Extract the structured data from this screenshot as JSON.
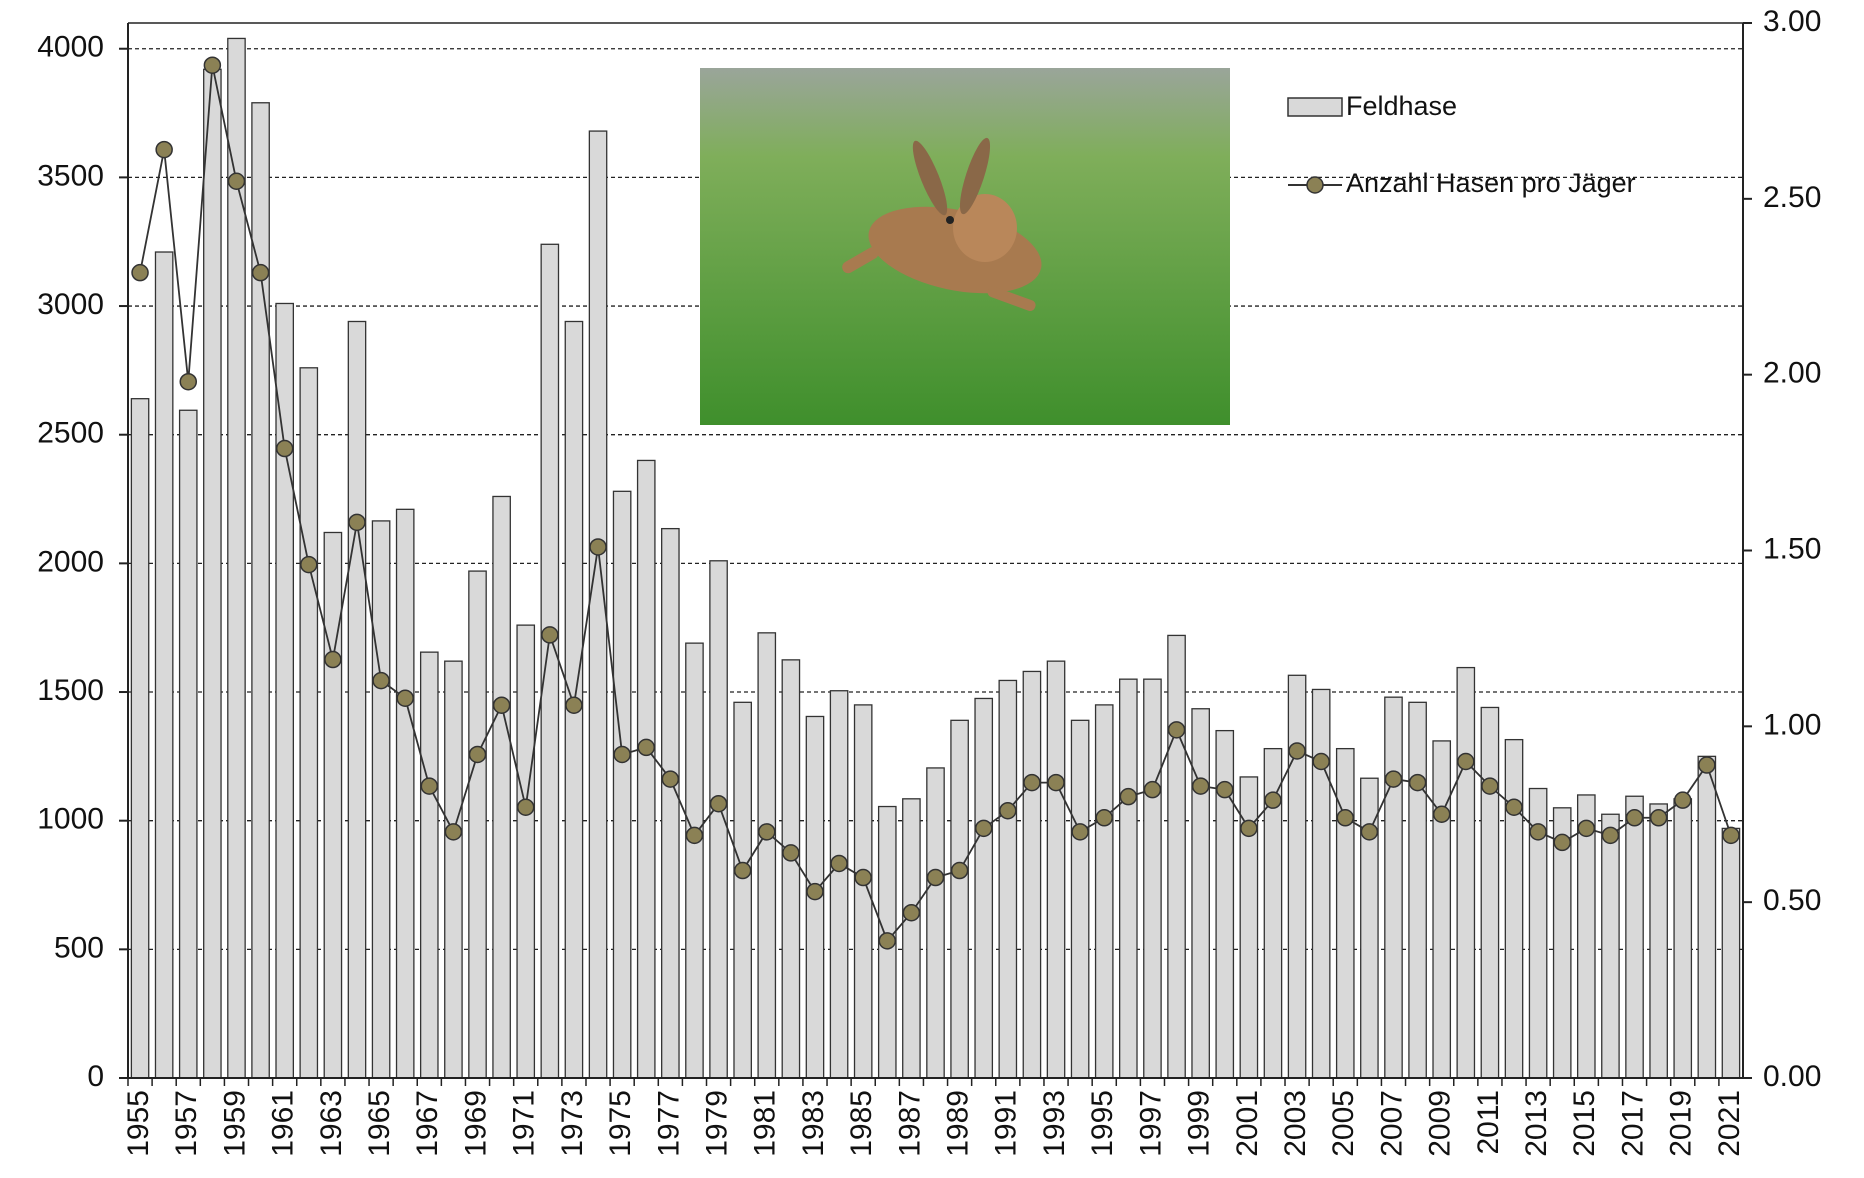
{
  "chart_data": {
    "type": "bar",
    "categories": [
      "1955",
      null,
      "1957",
      null,
      "1959",
      null,
      "1961",
      null,
      "1963",
      null,
      "1965",
      null,
      "1967",
      null,
      "1969",
      null,
      "1971",
      null,
      "1973",
      null,
      "1975",
      null,
      "1977",
      null,
      "1979",
      null,
      "1981",
      null,
      "1983",
      null,
      "1985",
      null,
      "1987",
      null,
      "1989",
      null,
      "1991",
      null,
      "1993",
      null,
      "1995",
      null,
      "1997",
      null,
      "1999",
      null,
      "2001",
      null,
      "2003",
      null,
      "2005",
      null,
      "2007",
      null,
      "2009",
      null,
      "2011",
      null,
      "2013",
      null,
      "2015",
      null,
      "2017",
      null,
      "2019",
      null,
      "2021"
    ],
    "series": [
      {
        "name": "Feldhase",
        "color": "#d9d9d9",
        "values": [
          2640,
          3210,
          2595,
          3920,
          4040,
          3790,
          3010,
          2760,
          2120,
          2940,
          2165,
          2210,
          1655,
          1620,
          1970,
          2260,
          1760,
          3240,
          2940,
          3680,
          2280,
          2400,
          2135,
          1690,
          2010,
          1460,
          1730,
          1625,
          1405,
          1505,
          1450,
          1055,
          1085,
          1205,
          1390,
          1475,
          1545,
          1580,
          1620,
          1390,
          1450,
          1550,
          1550,
          1720,
          1435,
          1350,
          1170,
          1280,
          1565,
          1510,
          1280,
          1165,
          1480,
          1460,
          1310,
          1595,
          1440,
          1315,
          1125,
          1050,
          1100,
          1025,
          1095,
          1065,
          1085,
          1250,
          970
        ]
      },
      {
        "name": "Anzahl Hasen pro Jäger",
        "color": "#8b8155",
        "type": "line",
        "axis": "y2",
        "values": [
          2.29,
          2.64,
          1.98,
          2.88,
          2.55,
          2.29,
          1.79,
          1.46,
          1.19,
          1.58,
          1.13,
          1.08,
          0.83,
          0.7,
          0.92,
          1.06,
          0.77,
          1.26,
          1.06,
          1.51,
          0.92,
          0.94,
          0.85,
          0.69,
          0.78,
          0.59,
          0.7,
          0.64,
          0.53,
          0.61,
          0.57,
          0.39,
          0.47,
          0.57,
          0.59,
          0.71,
          0.76,
          0.84,
          0.84,
          0.7,
          0.74,
          0.8,
          0.82,
          0.99,
          0.83,
          0.82,
          0.71,
          0.79,
          0.93,
          0.9,
          0.74,
          0.7,
          0.85,
          0.84,
          0.75,
          0.9,
          0.83,
          0.77,
          0.7,
          0.67,
          0.71,
          0.69,
          0.74,
          0.74,
          0.79,
          0.89,
          0.69
        ]
      }
    ],
    "ylim": [
      0,
      4100
    ],
    "yticks": [
      0,
      500,
      1000,
      1500,
      2000,
      2500,
      3000,
      3500,
      4000
    ],
    "y2lim": [
      0,
      3
    ],
    "y2ticks": [
      {
        "value": 0,
        "label": "0.00"
      },
      {
        "value": 0.5,
        "label": "0.50"
      },
      {
        "value": 1,
        "label": "1.00"
      },
      {
        "value": 1.5,
        "label": "1.50"
      },
      {
        "value": 2,
        "label": "2.00"
      },
      {
        "value": 2.5,
        "label": "2.50"
      },
      {
        "value": 3,
        "label": "3.00"
      }
    ],
    "grid": true,
    "legend": "top-right"
  }
}
